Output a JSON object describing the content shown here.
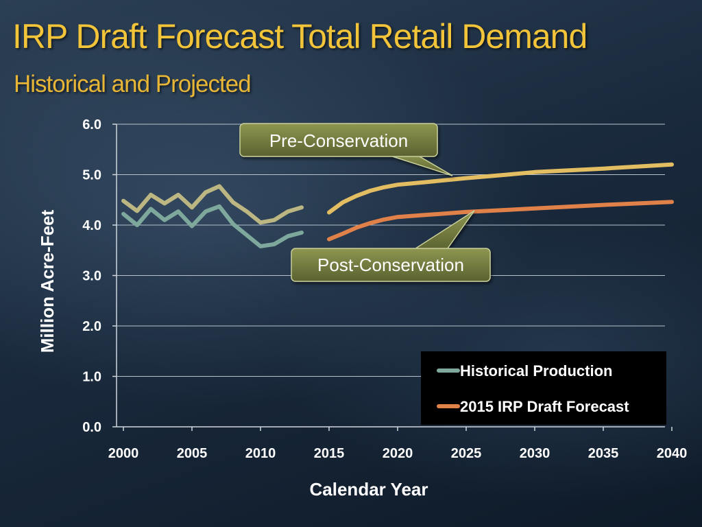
{
  "slide": {
    "title": "IRP Draft Forecast Total Retail Demand",
    "subtitle": "Historical and Projected"
  },
  "colors": {
    "title": "#f2c43a",
    "historical_post": "#7fa89c",
    "historical_pre": "#bcb682",
    "forecast_pre": "#e3bd62",
    "forecast_post": "#e0814a",
    "callout_fill": "#6b7236"
  },
  "callouts": {
    "pre": "Pre-Conservation",
    "post": "Post-Conservation"
  },
  "chart_data": {
    "type": "line",
    "xlabel": "Calendar Year",
    "ylabel": "Million Acre-Feet",
    "xlim": [
      2000,
      2040
    ],
    "ylim": [
      0,
      6
    ],
    "x_ticks": [
      "2000",
      "2005",
      "2010",
      "2015",
      "2020",
      "2025",
      "2030",
      "2035",
      "2040"
    ],
    "y_ticks": [
      "0.0",
      "1.0",
      "2.0",
      "3.0",
      "4.0",
      "5.0",
      "6.0"
    ],
    "grid": true,
    "legend_position": "bottom-right",
    "legend": [
      "Historical Production",
      "2015 IRP Draft Forecast"
    ],
    "series": [
      {
        "name": "Historical Production",
        "role": "historical post-conservation",
        "x": [
          2000,
          2001,
          2002,
          2003,
          2004,
          2005,
          2006,
          2007,
          2008,
          2009,
          2010,
          2011,
          2012,
          2013
        ],
        "y": [
          4.22,
          4.0,
          4.32,
          4.1,
          4.27,
          3.98,
          4.27,
          4.37,
          4.02,
          3.8,
          3.58,
          3.62,
          3.78,
          3.85
        ]
      },
      {
        "name": "",
        "role": "historical pre-conservation",
        "x": [
          2000,
          2001,
          2002,
          2003,
          2004,
          2005,
          2006,
          2007,
          2008,
          2009,
          2010,
          2011,
          2012,
          2013
        ],
        "y": [
          4.48,
          4.28,
          4.6,
          4.43,
          4.6,
          4.35,
          4.65,
          4.77,
          4.45,
          4.27,
          4.05,
          4.1,
          4.27,
          4.35
        ]
      },
      {
        "name": "",
        "role": "forecast pre-conservation",
        "x": [
          2015,
          2016,
          2017,
          2018,
          2019,
          2020,
          2022,
          2025,
          2028,
          2030,
          2035,
          2040
        ],
        "y": [
          4.25,
          4.45,
          4.58,
          4.68,
          4.75,
          4.8,
          4.85,
          4.93,
          5.0,
          5.05,
          5.12,
          5.2
        ]
      },
      {
        "name": "2015 IRP Draft Forecast",
        "role": "forecast post-conservation",
        "x": [
          2015,
          2016,
          2017,
          2018,
          2019,
          2020,
          2022,
          2025,
          2028,
          2030,
          2035,
          2040
        ],
        "y": [
          3.72,
          3.83,
          3.95,
          4.04,
          4.11,
          4.16,
          4.2,
          4.26,
          4.3,
          4.33,
          4.4,
          4.46
        ]
      }
    ]
  }
}
